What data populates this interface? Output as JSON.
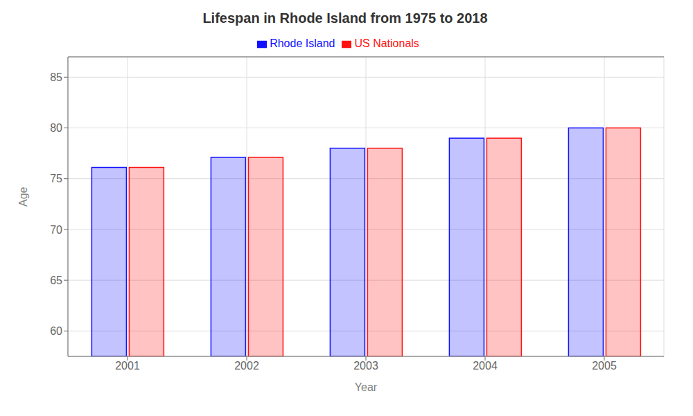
{
  "chart_data": {
    "type": "bar",
    "title": "Lifespan in Rhode Island from 1975 to 2018",
    "xlabel": "Year",
    "ylabel": "Age",
    "categories": [
      "2001",
      "2002",
      "2003",
      "2004",
      "2005"
    ],
    "series": [
      {
        "name": "Rhode Island",
        "color": "#1111ff",
        "values": [
          76.1,
          77.1,
          78.0,
          79.0,
          80.0
        ]
      },
      {
        "name": "US Nationals",
        "color": "#ff1111",
        "values": [
          76.1,
          77.1,
          78.0,
          79.0,
          80.0
        ]
      }
    ],
    "ylim": [
      57.5,
      87
    ],
    "yticks": [
      60,
      65,
      70,
      75,
      80,
      85
    ],
    "grid": true,
    "legend": "top"
  }
}
